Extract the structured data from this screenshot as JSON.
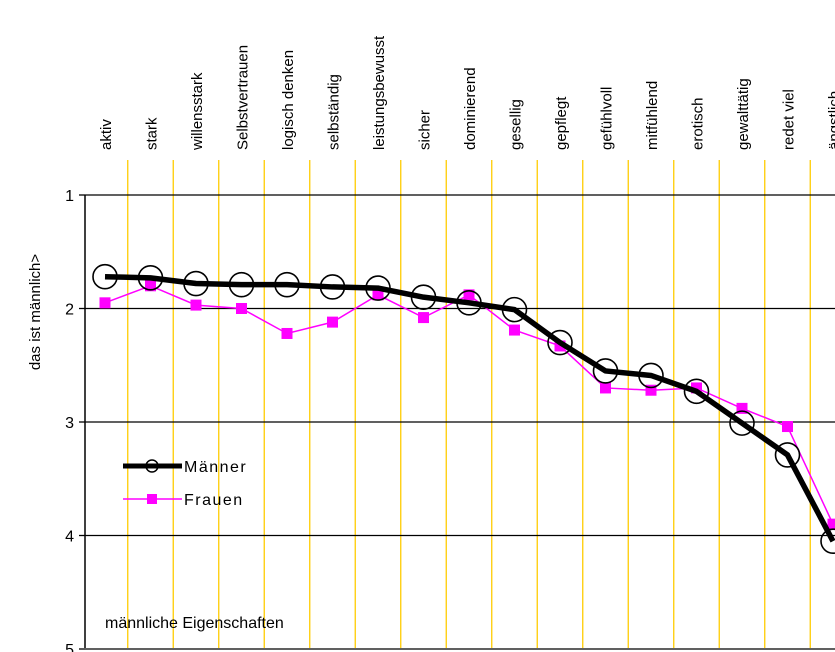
{
  "chart_data": {
    "type": "line",
    "categories": [
      "aktiv",
      "stark",
      "willensstark",
      "Selbstvertrauen",
      "logisch denken",
      "selbständig",
      "leistungsbewusst",
      "sicher",
      "dominierend",
      "gesellig",
      "gepflegt",
      "gefühlvoll",
      "mitfühlend",
      "erotisch",
      "gewalttätig",
      "redet viel",
      "ängstlich"
    ],
    "series": [
      {
        "name": "Männer",
        "values": [
          1.72,
          1.73,
          1.78,
          1.79,
          1.79,
          1.81,
          1.82,
          1.9,
          1.95,
          2.01,
          2.3,
          2.55,
          2.59,
          2.73,
          3.01,
          3.29,
          4.05
        ],
        "color": "#000000",
        "marker": "open-circle"
      },
      {
        "name": "Frauen",
        "values": [
          1.95,
          1.8,
          1.97,
          2.0,
          2.22,
          2.12,
          1.88,
          2.08,
          1.88,
          2.19,
          2.33,
          2.7,
          2.72,
          2.7,
          2.88,
          3.04,
          3.9
        ],
        "color": "#ff00ff",
        "marker": "filled-square"
      }
    ],
    "ylabel": "das ist männlich>",
    "yticks": [
      "1",
      "2",
      "3",
      "4",
      "5"
    ],
    "ylim": [
      1,
      5
    ],
    "y_inverted": true,
    "annotation": "männliche Eigenschaften",
    "legend_position": "lower-left inside plot",
    "grid": {
      "horizontal": true,
      "vertical": true,
      "vertical_color": "#ffcc00"
    }
  }
}
